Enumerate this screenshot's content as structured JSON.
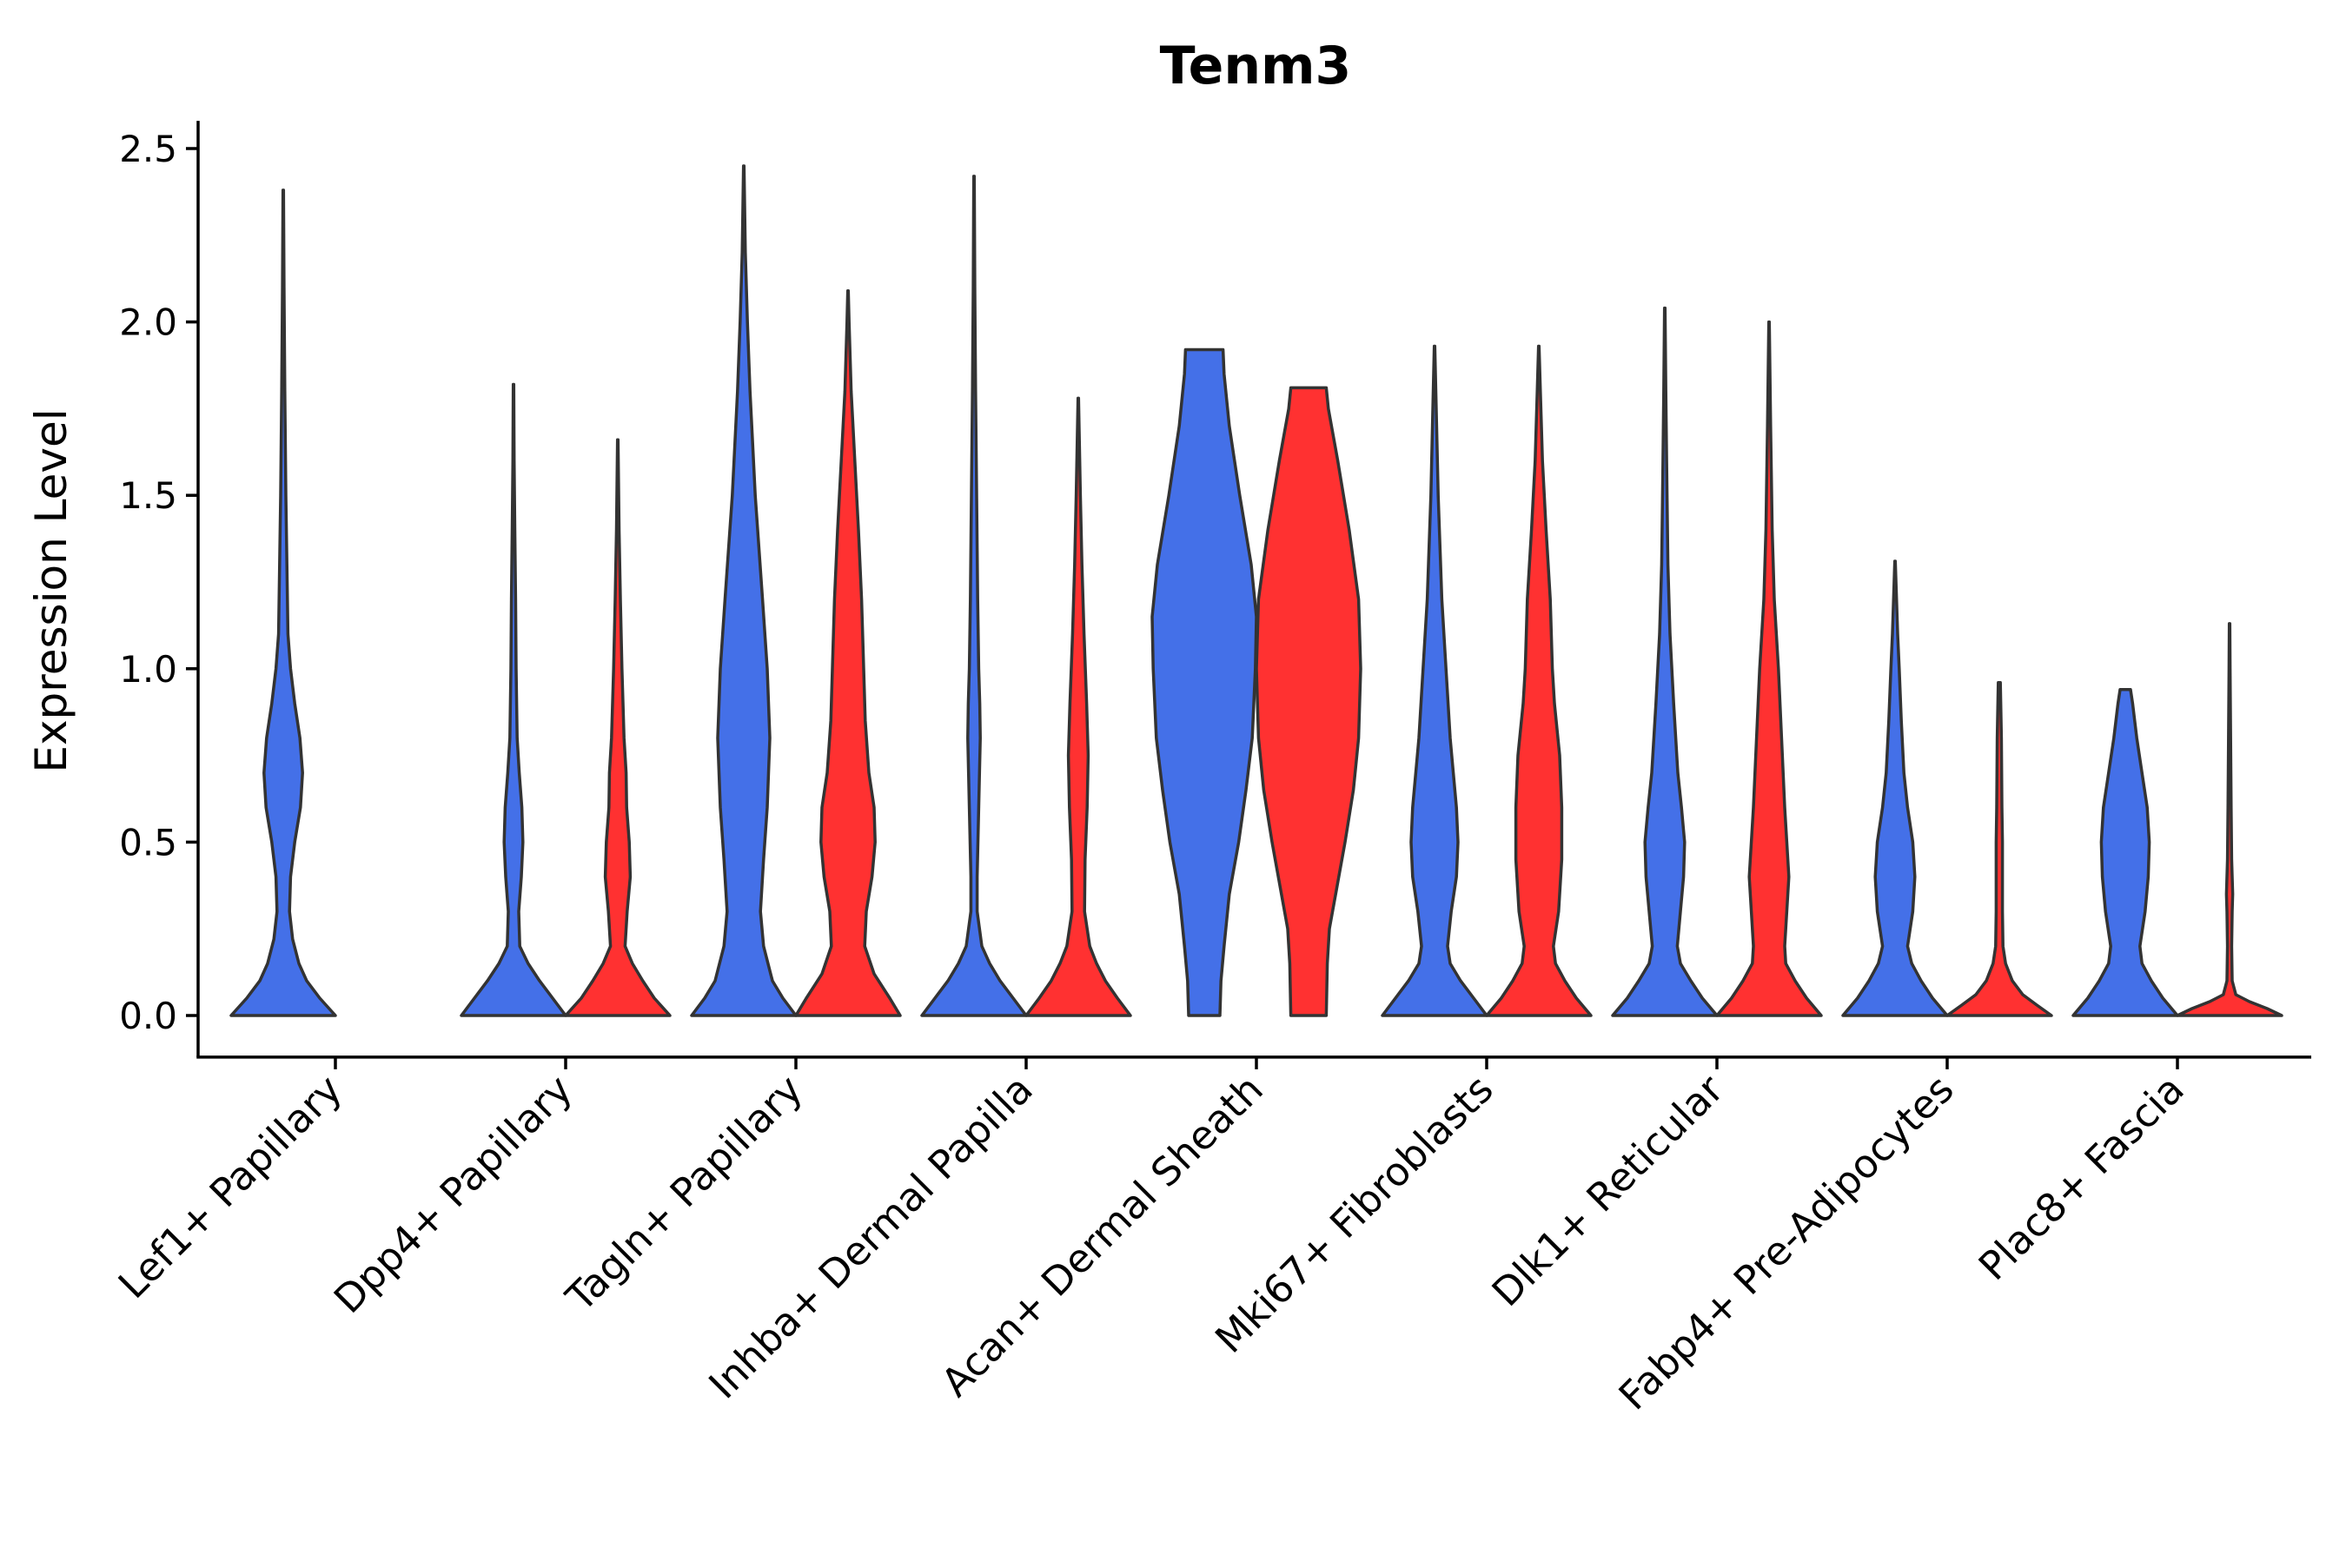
{
  "chart_data": {
    "type": "violin",
    "title": "Tenm3",
    "xlabel": "",
    "ylabel": "Expression Level",
    "ylim": [
      -0.12,
      2.58
    ],
    "yticks": [
      0.0,
      0.5,
      1.0,
      1.5,
      2.0,
      2.5
    ],
    "ytick_labels": [
      "0.0",
      "0.5",
      "1.0",
      "1.5",
      "2.0",
      "2.5"
    ],
    "grid": false,
    "legend": "none",
    "series_colors": [
      "#4470E8",
      "#FF3131"
    ],
    "categories": [
      "Lef1+ Papillary",
      "Dpp4+ Papillary",
      "Tagln+ Papillary",
      "Inhba+ Dermal Papilla",
      "Acan+ Dermal Sheath",
      "Mki67+ Fibroblasts",
      "Dlk1+ Reticular",
      "Fabp4+ Pre-Adipocytes",
      "Plac8+ Fascia"
    ],
    "violins": [
      {
        "category_index": 0,
        "series": 0,
        "max": 2.38,
        "density": [
          [
            0.0,
            1.0
          ],
          [
            0.05,
            0.7
          ],
          [
            0.1,
            0.45
          ],
          [
            0.15,
            0.3
          ],
          [
            0.22,
            0.18
          ],
          [
            0.3,
            0.12
          ],
          [
            0.4,
            0.14
          ],
          [
            0.5,
            0.22
          ],
          [
            0.6,
            0.33
          ],
          [
            0.7,
            0.37
          ],
          [
            0.8,
            0.32
          ],
          [
            0.9,
            0.22
          ],
          [
            1.0,
            0.14
          ],
          [
            1.1,
            0.09
          ],
          [
            1.3,
            0.07
          ],
          [
            1.5,
            0.05
          ],
          [
            1.8,
            0.03
          ],
          [
            2.1,
            0.015
          ],
          [
            2.38,
            0.005
          ]
        ]
      },
      {
        "category_index": 1,
        "series": 0,
        "max": 1.82,
        "density": [
          [
            0.0,
            1.0
          ],
          [
            0.05,
            0.75
          ],
          [
            0.1,
            0.5
          ],
          [
            0.15,
            0.28
          ],
          [
            0.2,
            0.12
          ],
          [
            0.3,
            0.1
          ],
          [
            0.4,
            0.15
          ],
          [
            0.5,
            0.18
          ],
          [
            0.6,
            0.16
          ],
          [
            0.7,
            0.11
          ],
          [
            0.8,
            0.07
          ],
          [
            1.0,
            0.05
          ],
          [
            1.2,
            0.04
          ],
          [
            1.4,
            0.025
          ],
          [
            1.6,
            0.012
          ],
          [
            1.82,
            0.005
          ]
        ]
      },
      {
        "category_index": 1,
        "series": 1,
        "max": 1.66,
        "density": [
          [
            0.0,
            1.0
          ],
          [
            0.05,
            0.7
          ],
          [
            0.1,
            0.48
          ],
          [
            0.15,
            0.28
          ],
          [
            0.2,
            0.14
          ],
          [
            0.3,
            0.18
          ],
          [
            0.4,
            0.24
          ],
          [
            0.5,
            0.22
          ],
          [
            0.6,
            0.17
          ],
          [
            0.7,
            0.16
          ],
          [
            0.8,
            0.12
          ],
          [
            1.0,
            0.08
          ],
          [
            1.2,
            0.05
          ],
          [
            1.4,
            0.025
          ],
          [
            1.66,
            0.005
          ]
        ]
      },
      {
        "category_index": 2,
        "series": 0,
        "max": 2.45,
        "density": [
          [
            0.0,
            1.0
          ],
          [
            0.05,
            0.75
          ],
          [
            0.1,
            0.55
          ],
          [
            0.2,
            0.38
          ],
          [
            0.3,
            0.32
          ],
          [
            0.45,
            0.38
          ],
          [
            0.6,
            0.45
          ],
          [
            0.8,
            0.5
          ],
          [
            1.0,
            0.45
          ],
          [
            1.2,
            0.36
          ],
          [
            1.5,
            0.22
          ],
          [
            1.8,
            0.12
          ],
          [
            2.0,
            0.07
          ],
          [
            2.2,
            0.03
          ],
          [
            2.45,
            0.005
          ]
        ]
      },
      {
        "category_index": 2,
        "series": 1,
        "max": 2.09,
        "density": [
          [
            0.0,
            1.0
          ],
          [
            0.05,
            0.8
          ],
          [
            0.12,
            0.5
          ],
          [
            0.2,
            0.32
          ],
          [
            0.3,
            0.35
          ],
          [
            0.4,
            0.46
          ],
          [
            0.5,
            0.52
          ],
          [
            0.6,
            0.5
          ],
          [
            0.7,
            0.4
          ],
          [
            0.85,
            0.33
          ],
          [
            1.0,
            0.3
          ],
          [
            1.2,
            0.26
          ],
          [
            1.4,
            0.2
          ],
          [
            1.6,
            0.13
          ],
          [
            1.8,
            0.06
          ],
          [
            2.0,
            0.02
          ],
          [
            2.09,
            0.005
          ]
        ]
      },
      {
        "category_index": 3,
        "series": 0,
        "max": 2.42,
        "density": [
          [
            0.0,
            1.0
          ],
          [
            0.05,
            0.75
          ],
          [
            0.1,
            0.5
          ],
          [
            0.15,
            0.3
          ],
          [
            0.2,
            0.15
          ],
          [
            0.3,
            0.06
          ],
          [
            0.4,
            0.06
          ],
          [
            0.6,
            0.09
          ],
          [
            0.8,
            0.12
          ],
          [
            0.9,
            0.11
          ],
          [
            1.0,
            0.09
          ],
          [
            1.2,
            0.07
          ],
          [
            1.5,
            0.05
          ],
          [
            1.8,
            0.03
          ],
          [
            2.1,
            0.015
          ],
          [
            2.42,
            0.005
          ]
        ]
      },
      {
        "category_index": 3,
        "series": 1,
        "max": 1.78,
        "density": [
          [
            0.0,
            1.0
          ],
          [
            0.05,
            0.75
          ],
          [
            0.1,
            0.52
          ],
          [
            0.15,
            0.35
          ],
          [
            0.2,
            0.22
          ],
          [
            0.3,
            0.12
          ],
          [
            0.45,
            0.13
          ],
          [
            0.6,
            0.17
          ],
          [
            0.75,
            0.19
          ],
          [
            0.9,
            0.16
          ],
          [
            1.1,
            0.11
          ],
          [
            1.3,
            0.07
          ],
          [
            1.5,
            0.04
          ],
          [
            1.78,
            0.005
          ]
        ]
      },
      {
        "category_index": 4,
        "series": 0,
        "max": 1.92,
        "density": [
          [
            0.0,
            0.3
          ],
          [
            0.1,
            0.32
          ],
          [
            0.2,
            0.38
          ],
          [
            0.35,
            0.48
          ],
          [
            0.5,
            0.66
          ],
          [
            0.65,
            0.8
          ],
          [
            0.8,
            0.92
          ],
          [
            1.0,
            0.98
          ],
          [
            1.15,
            1.0
          ],
          [
            1.3,
            0.9
          ],
          [
            1.5,
            0.68
          ],
          [
            1.7,
            0.48
          ],
          [
            1.85,
            0.38
          ],
          [
            1.92,
            0.36
          ]
        ]
      },
      {
        "category_index": 4,
        "series": 1,
        "max": 1.81,
        "density": [
          [
            0.0,
            0.34
          ],
          [
            0.15,
            0.36
          ],
          [
            0.25,
            0.4
          ],
          [
            0.35,
            0.52
          ],
          [
            0.5,
            0.7
          ],
          [
            0.65,
            0.86
          ],
          [
            0.8,
            0.96
          ],
          [
            1.0,
            1.0
          ],
          [
            1.2,
            0.96
          ],
          [
            1.4,
            0.78
          ],
          [
            1.6,
            0.56
          ],
          [
            1.75,
            0.38
          ],
          [
            1.81,
            0.34
          ]
        ]
      },
      {
        "category_index": 5,
        "series": 0,
        "max": 1.93,
        "density": [
          [
            0.0,
            1.0
          ],
          [
            0.05,
            0.75
          ],
          [
            0.1,
            0.5
          ],
          [
            0.15,
            0.3
          ],
          [
            0.2,
            0.25
          ],
          [
            0.3,
            0.32
          ],
          [
            0.4,
            0.42
          ],
          [
            0.5,
            0.45
          ],
          [
            0.6,
            0.42
          ],
          [
            0.7,
            0.36
          ],
          [
            0.8,
            0.3
          ],
          [
            1.0,
            0.22
          ],
          [
            1.2,
            0.14
          ],
          [
            1.5,
            0.07
          ],
          [
            1.7,
            0.04
          ],
          [
            1.93,
            0.005
          ]
        ]
      },
      {
        "category_index": 5,
        "series": 1,
        "max": 1.93,
        "density": [
          [
            0.0,
            1.0
          ],
          [
            0.05,
            0.72
          ],
          [
            0.1,
            0.5
          ],
          [
            0.15,
            0.32
          ],
          [
            0.2,
            0.28
          ],
          [
            0.3,
            0.38
          ],
          [
            0.45,
            0.44
          ],
          [
            0.6,
            0.44
          ],
          [
            0.75,
            0.4
          ],
          [
            0.9,
            0.3
          ],
          [
            1.0,
            0.26
          ],
          [
            1.2,
            0.22
          ],
          [
            1.4,
            0.14
          ],
          [
            1.6,
            0.07
          ],
          [
            1.8,
            0.03
          ],
          [
            1.93,
            0.005
          ]
        ]
      },
      {
        "category_index": 6,
        "series": 0,
        "max": 2.04,
        "density": [
          [
            0.0,
            1.0
          ],
          [
            0.05,
            0.72
          ],
          [
            0.1,
            0.5
          ],
          [
            0.15,
            0.3
          ],
          [
            0.2,
            0.24
          ],
          [
            0.3,
            0.3
          ],
          [
            0.4,
            0.36
          ],
          [
            0.5,
            0.38
          ],
          [
            0.6,
            0.32
          ],
          [
            0.7,
            0.25
          ],
          [
            0.9,
            0.17
          ],
          [
            1.1,
            0.1
          ],
          [
            1.3,
            0.06
          ],
          [
            1.6,
            0.035
          ],
          [
            1.8,
            0.02
          ],
          [
            2.04,
            0.005
          ]
        ]
      },
      {
        "category_index": 6,
        "series": 1,
        "max": 2.0,
        "density": [
          [
            0.0,
            1.0
          ],
          [
            0.05,
            0.72
          ],
          [
            0.1,
            0.5
          ],
          [
            0.15,
            0.32
          ],
          [
            0.2,
            0.3
          ],
          [
            0.3,
            0.34
          ],
          [
            0.4,
            0.38
          ],
          [
            0.5,
            0.34
          ],
          [
            0.6,
            0.3
          ],
          [
            0.8,
            0.24
          ],
          [
            1.0,
            0.18
          ],
          [
            1.2,
            0.1
          ],
          [
            1.4,
            0.06
          ],
          [
            1.7,
            0.03
          ],
          [
            2.0,
            0.005
          ]
        ]
      },
      {
        "category_index": 7,
        "series": 0,
        "max": 1.31,
        "density": [
          [
            0.0,
            1.0
          ],
          [
            0.05,
            0.72
          ],
          [
            0.1,
            0.5
          ],
          [
            0.15,
            0.32
          ],
          [
            0.2,
            0.24
          ],
          [
            0.3,
            0.34
          ],
          [
            0.4,
            0.38
          ],
          [
            0.5,
            0.34
          ],
          [
            0.6,
            0.24
          ],
          [
            0.7,
            0.17
          ],
          [
            0.85,
            0.12
          ],
          [
            1.0,
            0.08
          ],
          [
            1.1,
            0.05
          ],
          [
            1.31,
            0.005
          ]
        ]
      },
      {
        "category_index": 7,
        "series": 1,
        "max": 0.96,
        "density": [
          [
            0.0,
            1.0
          ],
          [
            0.03,
            0.72
          ],
          [
            0.06,
            0.45
          ],
          [
            0.1,
            0.25
          ],
          [
            0.15,
            0.12
          ],
          [
            0.2,
            0.07
          ],
          [
            0.3,
            0.06
          ],
          [
            0.4,
            0.06
          ],
          [
            0.5,
            0.06
          ],
          [
            0.6,
            0.05
          ],
          [
            0.8,
            0.04
          ],
          [
            0.96,
            0.02
          ]
        ]
      },
      {
        "category_index": 8,
        "series": 0,
        "max": 0.94,
        "density": [
          [
            0.0,
            1.0
          ],
          [
            0.05,
            0.72
          ],
          [
            0.1,
            0.5
          ],
          [
            0.15,
            0.32
          ],
          [
            0.2,
            0.28
          ],
          [
            0.3,
            0.38
          ],
          [
            0.4,
            0.44
          ],
          [
            0.5,
            0.46
          ],
          [
            0.6,
            0.42
          ],
          [
            0.7,
            0.32
          ],
          [
            0.8,
            0.22
          ],
          [
            0.9,
            0.14
          ],
          [
            0.94,
            0.1
          ]
        ]
      },
      {
        "category_index": 8,
        "series": 1,
        "max": 1.13,
        "density": [
          [
            0.0,
            1.0
          ],
          [
            0.02,
            0.72
          ],
          [
            0.04,
            0.38
          ],
          [
            0.06,
            0.12
          ],
          [
            0.1,
            0.05
          ],
          [
            0.2,
            0.04
          ],
          [
            0.3,
            0.05
          ],
          [
            0.35,
            0.06
          ],
          [
            0.45,
            0.04
          ],
          [
            0.6,
            0.03
          ],
          [
            0.8,
            0.02
          ],
          [
            1.0,
            0.01
          ],
          [
            1.13,
            0.005
          ]
        ]
      }
    ]
  }
}
